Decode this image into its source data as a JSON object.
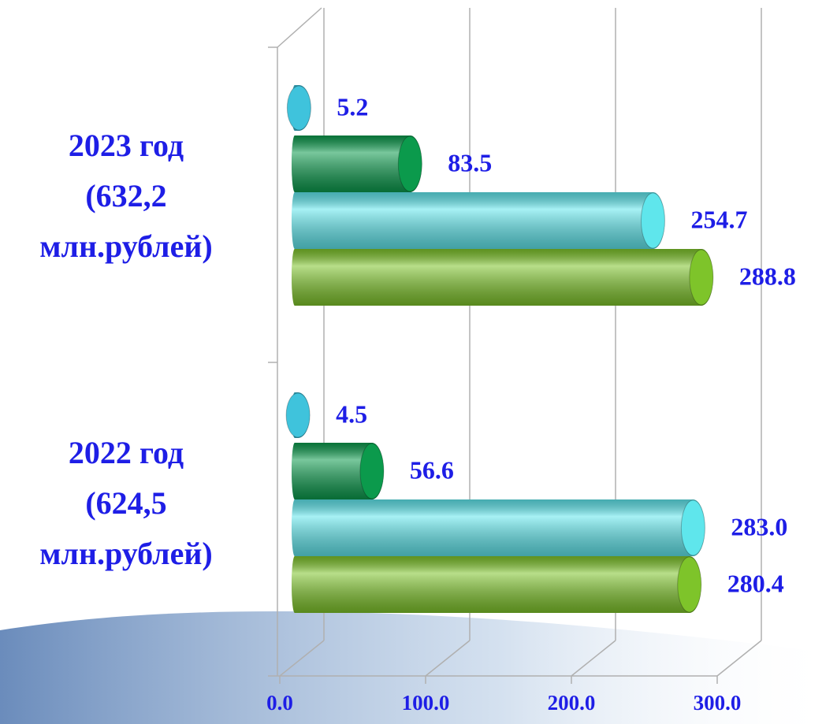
{
  "chart_data": {
    "type": "bar3d-horizontal",
    "categories": [
      [
        "2023 год",
        "(632,2",
        "млн.рублей)"
      ],
      [
        "2022 год",
        "(624,5",
        "млн.рублей)"
      ]
    ],
    "series": [
      {
        "color": "#3fc3dc",
        "values": [
          5.2,
          4.5
        ],
        "value_labels": [
          "5.2",
          "4.5"
        ]
      },
      {
        "color": "#0b9a4c",
        "values": [
          83.5,
          56.6
        ],
        "value_labels": [
          "83.5",
          "56.6"
        ]
      },
      {
        "color": "#5fe6ec",
        "values": [
          254.7,
          283.0
        ],
        "value_labels": [
          "254.7",
          "283.0"
        ]
      },
      {
        "color": "#7ec42a",
        "values": [
          288.8,
          280.4
        ],
        "value_labels": [
          "288.8",
          "280.4"
        ]
      }
    ],
    "xlim": [
      0,
      300
    ],
    "xticks": [
      {
        "value": 0,
        "label": "0.0"
      },
      {
        "value": 100,
        "label": "100.0"
      },
      {
        "value": 200,
        "label": "200.0"
      },
      {
        "value": 300,
        "label": "300.0"
      }
    ],
    "grid": true,
    "label_color": "#1e1ee6"
  }
}
